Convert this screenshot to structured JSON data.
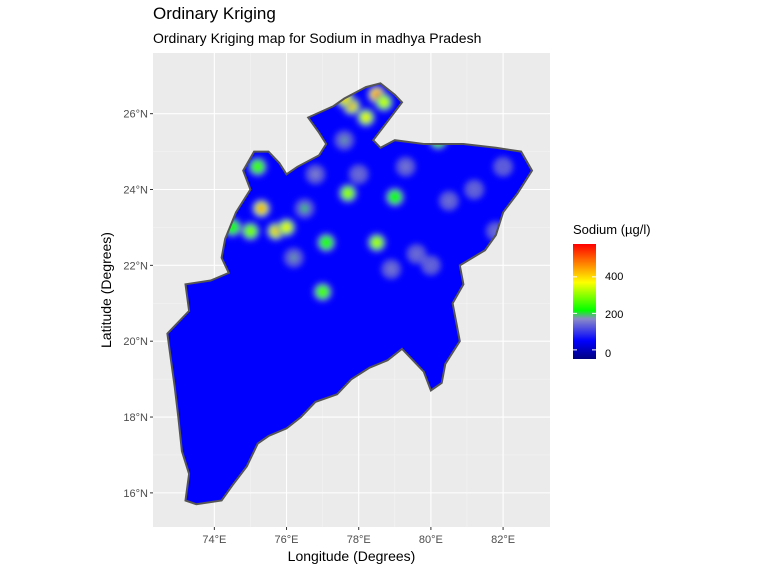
{
  "title": "Ordinary Kriging",
  "subtitle": "Ordinary Kriging map for Sodium in madhya Pradesh",
  "chart_data": {
    "type": "heatmap",
    "title": "Ordinary Kriging",
    "subtitle": "Ordinary Kriging map for Sodium in madhya Pradesh",
    "xlabel": "Longitude (Degrees)",
    "ylabel": "Latitude (Degrees)",
    "xlim": [
      72.3,
      83.3
    ],
    "ylim": [
      15.1,
      27.6
    ],
    "x_ticks": [
      74,
      76,
      78,
      80,
      82
    ],
    "x_tick_labels": [
      "74°E",
      "76°E",
      "78°E",
      "80°E",
      "82°E"
    ],
    "y_ticks": [
      16,
      18,
      20,
      22,
      24,
      26
    ],
    "y_tick_labels": [
      "16°N",
      "18°N",
      "20°N",
      "22°N",
      "24°N",
      "26°N"
    ],
    "grid": true,
    "legend": {
      "title": "Sodium (µg/l)",
      "placement": "right",
      "range": [
        -50,
        580
      ],
      "ticks": [
        0,
        200,
        400
      ],
      "tick_labels": [
        "0",
        "200",
        "400"
      ],
      "colors": [
        "#00007f",
        "#0000ff",
        "#8080c0",
        "#00ff00",
        "#ffff00",
        "#ff0000"
      ]
    },
    "region_outline": [
      [
        73.2,
        15.8
      ],
      [
        73.5,
        15.7
      ],
      [
        74.2,
        15.8
      ],
      [
        74.5,
        16.2
      ],
      [
        74.9,
        16.7
      ],
      [
        75.2,
        17.3
      ],
      [
        75.5,
        17.5
      ],
      [
        76.0,
        17.7
      ],
      [
        76.4,
        18.0
      ],
      [
        76.8,
        18.4
      ],
      [
        77.4,
        18.6
      ],
      [
        77.8,
        19.0
      ],
      [
        78.3,
        19.3
      ],
      [
        78.8,
        19.5
      ],
      [
        79.2,
        19.8
      ],
      [
        79.8,
        19.2
      ],
      [
        80.0,
        18.7
      ],
      [
        80.3,
        18.9
      ],
      [
        80.4,
        19.4
      ],
      [
        80.8,
        20.0
      ],
      [
        80.7,
        20.5
      ],
      [
        80.6,
        21.0
      ],
      [
        80.9,
        21.5
      ],
      [
        80.8,
        22.0
      ],
      [
        81.5,
        22.4
      ],
      [
        81.8,
        22.8
      ],
      [
        82.0,
        23.4
      ],
      [
        82.4,
        23.9
      ],
      [
        82.8,
        24.5
      ],
      [
        82.5,
        25.0
      ],
      [
        81.8,
        25.1
      ],
      [
        80.9,
        25.2
      ],
      [
        80.4,
        25.2
      ],
      [
        79.8,
        25.2
      ],
      [
        79.0,
        25.3
      ],
      [
        78.6,
        25.1
      ],
      [
        78.4,
        25.3
      ],
      [
        78.8,
        25.8
      ],
      [
        79.2,
        26.3
      ],
      [
        79.0,
        26.5
      ],
      [
        78.6,
        26.8
      ],
      [
        78.2,
        26.7
      ],
      [
        77.6,
        26.4
      ],
      [
        77.3,
        26.2
      ],
      [
        76.6,
        25.9
      ],
      [
        76.9,
        25.5
      ],
      [
        77.1,
        25.2
      ],
      [
        76.9,
        24.9
      ],
      [
        76.3,
        24.6
      ],
      [
        76.0,
        24.4
      ],
      [
        75.8,
        24.7
      ],
      [
        75.5,
        25.0
      ],
      [
        75.1,
        25.0
      ],
      [
        74.8,
        24.5
      ],
      [
        75.0,
        24.0
      ],
      [
        74.6,
        23.4
      ],
      [
        74.3,
        22.7
      ],
      [
        74.2,
        22.2
      ],
      [
        74.4,
        21.8
      ],
      [
        73.9,
        21.6
      ],
      [
        73.2,
        21.5
      ],
      [
        73.3,
        20.8
      ],
      [
        72.7,
        20.2
      ],
      [
        72.8,
        19.5
      ],
      [
        72.9,
        18.8
      ],
      [
        73.0,
        18.0
      ],
      [
        73.1,
        17.1
      ],
      [
        73.3,
        16.5
      ],
      [
        73.2,
        15.8
      ]
    ],
    "hotspots": [
      {
        "lon": 78.5,
        "lat": 26.5,
        "value": 520
      },
      {
        "lon": 77.8,
        "lat": 26.2,
        "value": 430
      },
      {
        "lon": 78.2,
        "lat": 25.9,
        "value": 380
      },
      {
        "lon": 77.6,
        "lat": 26.4,
        "value": 440
      },
      {
        "lon": 78.7,
        "lat": 26.3,
        "value": 350
      },
      {
        "lon": 75.3,
        "lat": 23.5,
        "value": 470
      },
      {
        "lon": 75.7,
        "lat": 22.9,
        "value": 420
      },
      {
        "lon": 76.0,
        "lat": 23.0,
        "value": 380
      },
      {
        "lon": 75.0,
        "lat": 22.9,
        "value": 300
      },
      {
        "lon": 75.2,
        "lat": 24.6,
        "value": 260
      },
      {
        "lon": 77.7,
        "lat": 23.9,
        "value": 320
      },
      {
        "lon": 78.5,
        "lat": 22.6,
        "value": 330
      },
      {
        "lon": 77.0,
        "lat": 21.3,
        "value": 270
      },
      {
        "lon": 77.1,
        "lat": 22.6,
        "value": 240
      },
      {
        "lon": 80.2,
        "lat": 25.3,
        "value": 260
      },
      {
        "lon": 79.0,
        "lat": 23.8,
        "value": 220
      },
      {
        "lon": 76.5,
        "lat": 23.5,
        "value": 200
      },
      {
        "lon": 74.5,
        "lat": 23.0,
        "value": 230
      },
      {
        "lon": 76.2,
        "lat": 22.2,
        "value": 180
      },
      {
        "lon": 77.6,
        "lat": 25.3,
        "value": 180
      },
      {
        "lon": 78.9,
        "lat": 21.9,
        "value": 160
      },
      {
        "lon": 79.6,
        "lat": 22.3,
        "value": 150
      },
      {
        "lon": 80.5,
        "lat": 23.7,
        "value": 150
      },
      {
        "lon": 81.2,
        "lat": 24.0,
        "value": 140
      },
      {
        "lon": 76.8,
        "lat": 24.4,
        "value": 170
      },
      {
        "lon": 79.3,
        "lat": 24.6,
        "value": 160
      },
      {
        "lon": 81.8,
        "lat": 22.9,
        "value": 150
      },
      {
        "lon": 80.0,
        "lat": 22.0,
        "value": 140
      },
      {
        "lon": 82.0,
        "lat": 24.6,
        "value": 130
      },
      {
        "lon": 78.0,
        "lat": 24.4,
        "value": 150
      }
    ]
  }
}
